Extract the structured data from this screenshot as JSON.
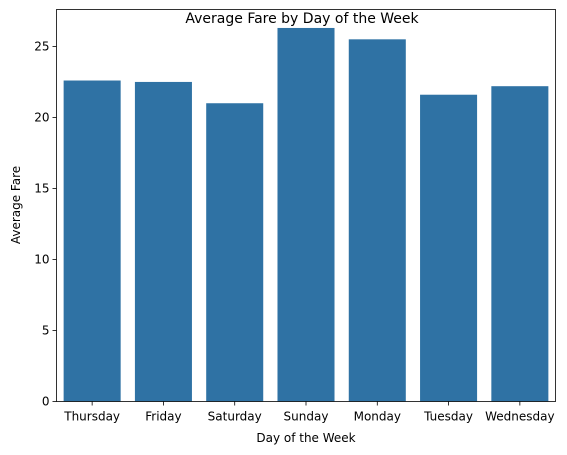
{
  "chart_data": {
    "type": "bar",
    "title": "Average Fare by Day of the Week",
    "xlabel": "Day of the Week",
    "ylabel": "Average Fare",
    "categories": [
      "Thursday",
      "Friday",
      "Saturday",
      "Sunday",
      "Monday",
      "Tuesday",
      "Wednesday"
    ],
    "values": [
      22.6,
      22.5,
      21.0,
      26.3,
      25.5,
      21.6,
      22.2
    ],
    "ylim": [
      0,
      27.6
    ],
    "yticks": [
      0,
      5,
      10,
      15,
      20,
      25
    ],
    "grid": false,
    "bar_color": "#2f72a4"
  }
}
